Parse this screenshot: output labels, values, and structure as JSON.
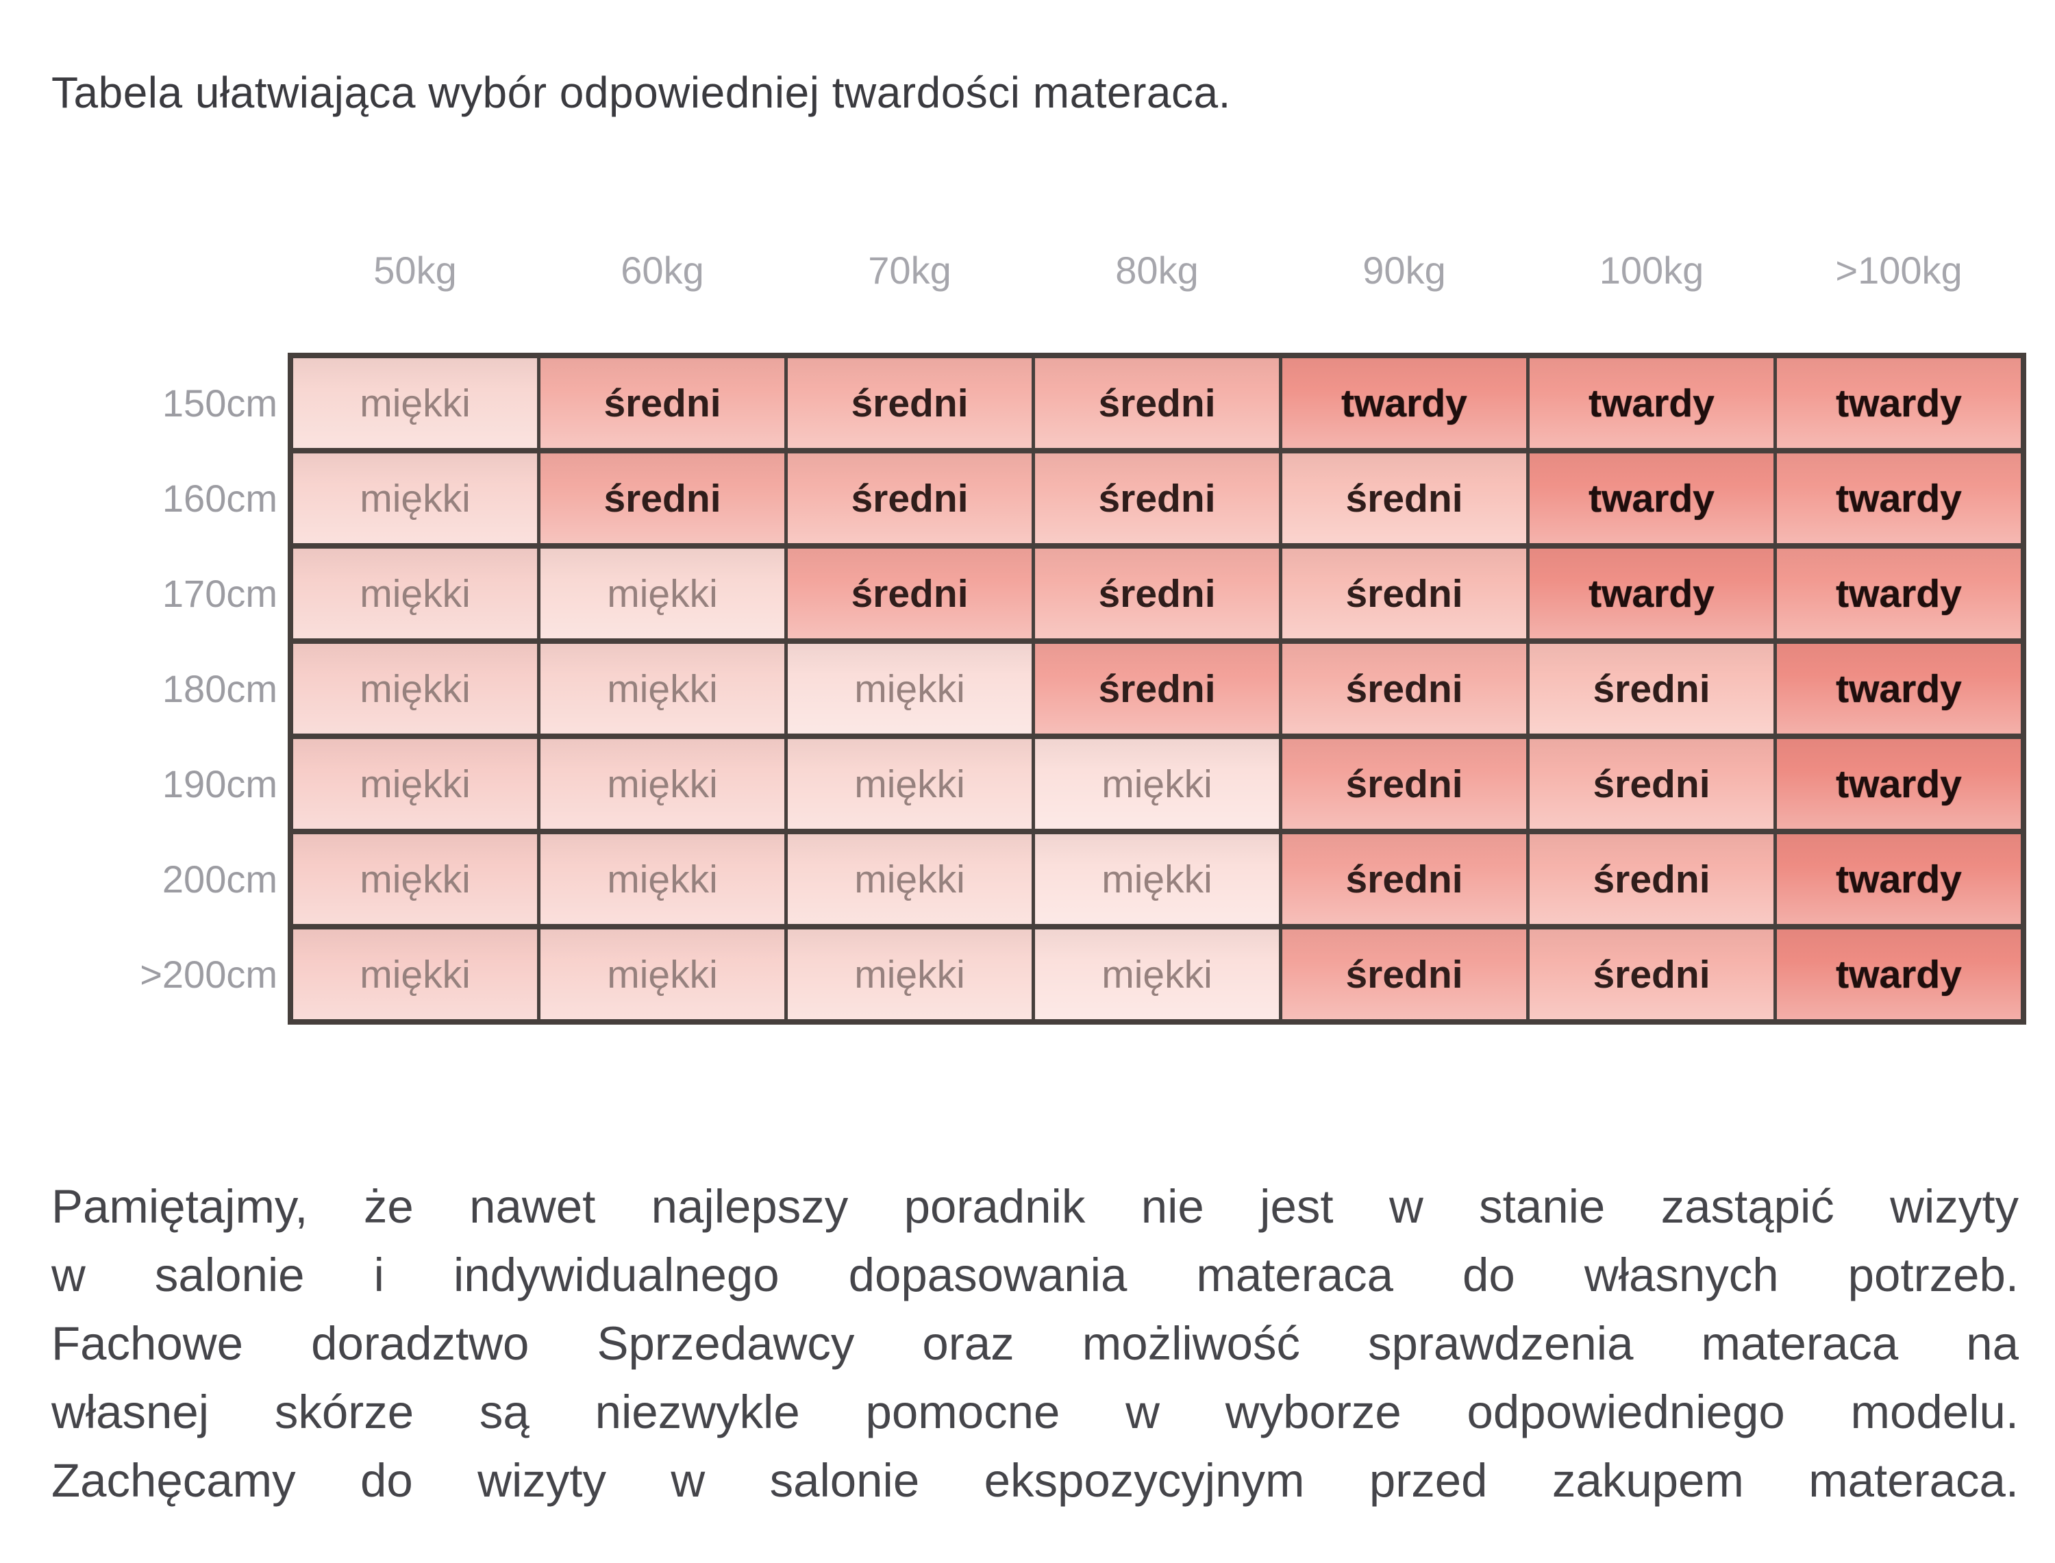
{
  "title": "Tabela ułatwiająca wybór odpowiedniej twardości materaca.",
  "table": {
    "weight_headers": [
      "50kg",
      "60kg",
      "70kg",
      "80kg",
      "90kg",
      "100kg",
      ">100kg"
    ],
    "height_labels": [
      "150cm",
      "160cm",
      "170cm",
      "180cm",
      "190cm",
      "200cm",
      ">200cm"
    ],
    "firmness_values": [
      "miękki",
      "średni",
      "twardy"
    ],
    "rows": [
      {
        "height": "150cm",
        "cells": [
          {
            "label": "miękki",
            "type": "soft",
            "bg": "#f8d7d2"
          },
          {
            "label": "średni",
            "type": "medium",
            "bg": "#f4aea6"
          },
          {
            "label": "średni",
            "type": "medium",
            "bg": "#f5b1a9"
          },
          {
            "label": "średni",
            "type": "medium",
            "bg": "#f5b1a9"
          },
          {
            "label": "twardy",
            "type": "hard",
            "bg": "#f0948b"
          },
          {
            "label": "twardy",
            "type": "hard",
            "bg": "#f29b92"
          },
          {
            "label": "twardy",
            "type": "hard",
            "bg": "#f29b92"
          }
        ]
      },
      {
        "height": "160cm",
        "cells": [
          {
            "label": "miękki",
            "type": "soft",
            "bg": "#f8d4cf"
          },
          {
            "label": "średni",
            "type": "medium",
            "bg": "#f3aaa2"
          },
          {
            "label": "średni",
            "type": "medium",
            "bg": "#f5b2aa"
          },
          {
            "label": "średni",
            "type": "medium",
            "bg": "#f6b6ae"
          },
          {
            "label": "średni",
            "type": "medium",
            "bg": "#f8c1b9"
          },
          {
            "label": "twardy",
            "type": "hard",
            "bg": "#f09289"
          },
          {
            "label": "twardy",
            "type": "hard",
            "bg": "#f29a91"
          }
        ]
      },
      {
        "height": "170cm",
        "cells": [
          {
            "label": "miękki",
            "type": "soft",
            "bg": "#f7d1cc"
          },
          {
            "label": "miękki",
            "type": "soft",
            "bg": "#f9d9d4"
          },
          {
            "label": "średni",
            "type": "medium",
            "bg": "#f3a59d"
          },
          {
            "label": "średni",
            "type": "medium",
            "bg": "#f5b0a8"
          },
          {
            "label": "średni",
            "type": "medium",
            "bg": "#f7bcb4"
          },
          {
            "label": "twardy",
            "type": "hard",
            "bg": "#ef9087"
          },
          {
            "label": "twardy",
            "type": "hard",
            "bg": "#f29a91"
          }
        ]
      },
      {
        "height": "180cm",
        "cells": [
          {
            "label": "miękki",
            "type": "soft",
            "bg": "#f7cfca"
          },
          {
            "label": "miękki",
            "type": "soft",
            "bg": "#f8d4cf"
          },
          {
            "label": "miękki",
            "type": "soft",
            "bg": "#fadeda"
          },
          {
            "label": "średni",
            "type": "medium",
            "bg": "#f3a29a"
          },
          {
            "label": "średni",
            "type": "medium",
            "bg": "#f5b0a8"
          },
          {
            "label": "średni",
            "type": "medium",
            "bg": "#f8c0b8"
          },
          {
            "label": "twardy",
            "type": "hard",
            "bg": "#ef8e85"
          }
        ]
      },
      {
        "height": "190cm",
        "cells": [
          {
            "label": "miękki",
            "type": "soft",
            "bg": "#f7cdc8"
          },
          {
            "label": "miękki",
            "type": "soft",
            "bg": "#f8d2cd"
          },
          {
            "label": "miękki",
            "type": "soft",
            "bg": "#f9d8d3"
          },
          {
            "label": "miękki",
            "type": "soft",
            "bg": "#fbe0dc"
          },
          {
            "label": "średni",
            "type": "medium",
            "bg": "#f3a39b"
          },
          {
            "label": "średni",
            "type": "medium",
            "bg": "#f6b3ab"
          },
          {
            "label": "twardy",
            "type": "hard",
            "bg": "#ee8c83"
          }
        ]
      },
      {
        "height": "200cm",
        "cells": [
          {
            "label": "miękki",
            "type": "soft",
            "bg": "#f7cdc8"
          },
          {
            "label": "miękki",
            "type": "soft",
            "bg": "#f8d2cd"
          },
          {
            "label": "miękki",
            "type": "soft",
            "bg": "#f9d8d3"
          },
          {
            "label": "miękki",
            "type": "soft",
            "bg": "#fbe0dc"
          },
          {
            "label": "średni",
            "type": "medium",
            "bg": "#f3a39b"
          },
          {
            "label": "średni",
            "type": "medium",
            "bg": "#f6b3ab"
          },
          {
            "label": "twardy",
            "type": "hard",
            "bg": "#ee8c83"
          }
        ]
      },
      {
        "height": ">200cm",
        "cells": [
          {
            "label": "miękki",
            "type": "soft",
            "bg": "#f7cdc8"
          },
          {
            "label": "miękki",
            "type": "soft",
            "bg": "#f8d2cd"
          },
          {
            "label": "miękki",
            "type": "soft",
            "bg": "#f9d8d3"
          },
          {
            "label": "miękki",
            "type": "soft",
            "bg": "#fbe0dc"
          },
          {
            "label": "średni",
            "type": "medium",
            "bg": "#f3a39b"
          },
          {
            "label": "średni",
            "type": "medium",
            "bg": "#f6b3ab"
          },
          {
            "label": "twardy",
            "type": "hard",
            "bg": "#ee8c83"
          }
        ]
      }
    ]
  },
  "advice": {
    "lines": [
      "Pamiętajmy, że nawet najlepszy poradnik nie jest w stanie zastąpić wizyty",
      "w salonie i indywidualnego dopasowania materaca do własnych potrzeb.",
      "Fachowe doradztwo Sprzedawcy oraz możliwość sprawdzenia materaca na",
      "własnej skórze są niezwykle pomocne w wyborze odpowiedniego modelu.",
      "Zachęcamy do wizyty w salonie ekspozycyjnym przed zakupem materaca."
    ]
  },
  "colors": {
    "grid_line": "#463f3c",
    "title_text": "#3a3a3f",
    "header_text": "#a6a6ac",
    "row_label_text": "#9c9ca2",
    "paragraph_text": "#45454a",
    "soft_text": "#96817e",
    "medium_text": "#2f1d1b",
    "hard_text": "#1e0e0d",
    "page_bg": "#ffffff"
  }
}
